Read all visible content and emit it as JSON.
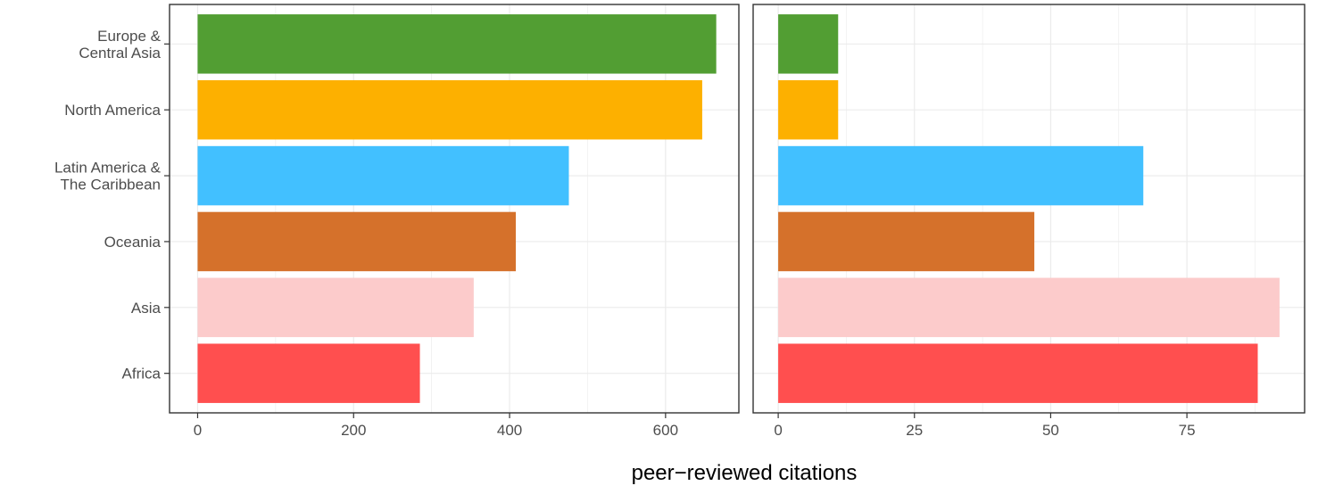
{
  "chart_data": {
    "type": "bar",
    "orientation": "horizontal",
    "xlabel": "peer−reviewed citations",
    "ylabel": "",
    "grid": true,
    "legend": "none",
    "categories": [
      [
        "Europe &",
        "Central Asia"
      ],
      [
        "North America"
      ],
      [
        "Latin America &",
        "The Caribbean"
      ],
      [
        "Oceania"
      ],
      [
        "Asia"
      ],
      [
        "Africa"
      ]
    ],
    "colors": [
      "#529E33",
      "#FDB000",
      "#42C0FF",
      "#D5712B",
      "#FCCBCB",
      "#FF4F4F"
    ],
    "panels": [
      {
        "values": [
          665,
          647,
          476,
          408,
          354,
          285
        ],
        "xlim": [
          -36,
          694
        ],
        "xticks": [
          0,
          200,
          400,
          600
        ],
        "xtick_labels": [
          "0",
          "200",
          "400",
          "600"
        ]
      },
      {
        "values": [
          11,
          11,
          67,
          47,
          92,
          88
        ],
        "xlim": [
          -4.6,
          96.6
        ],
        "xticks": [
          0,
          25,
          50,
          75
        ],
        "xtick_labels": [
          "0",
          "25",
          "50",
          "75"
        ]
      }
    ]
  }
}
